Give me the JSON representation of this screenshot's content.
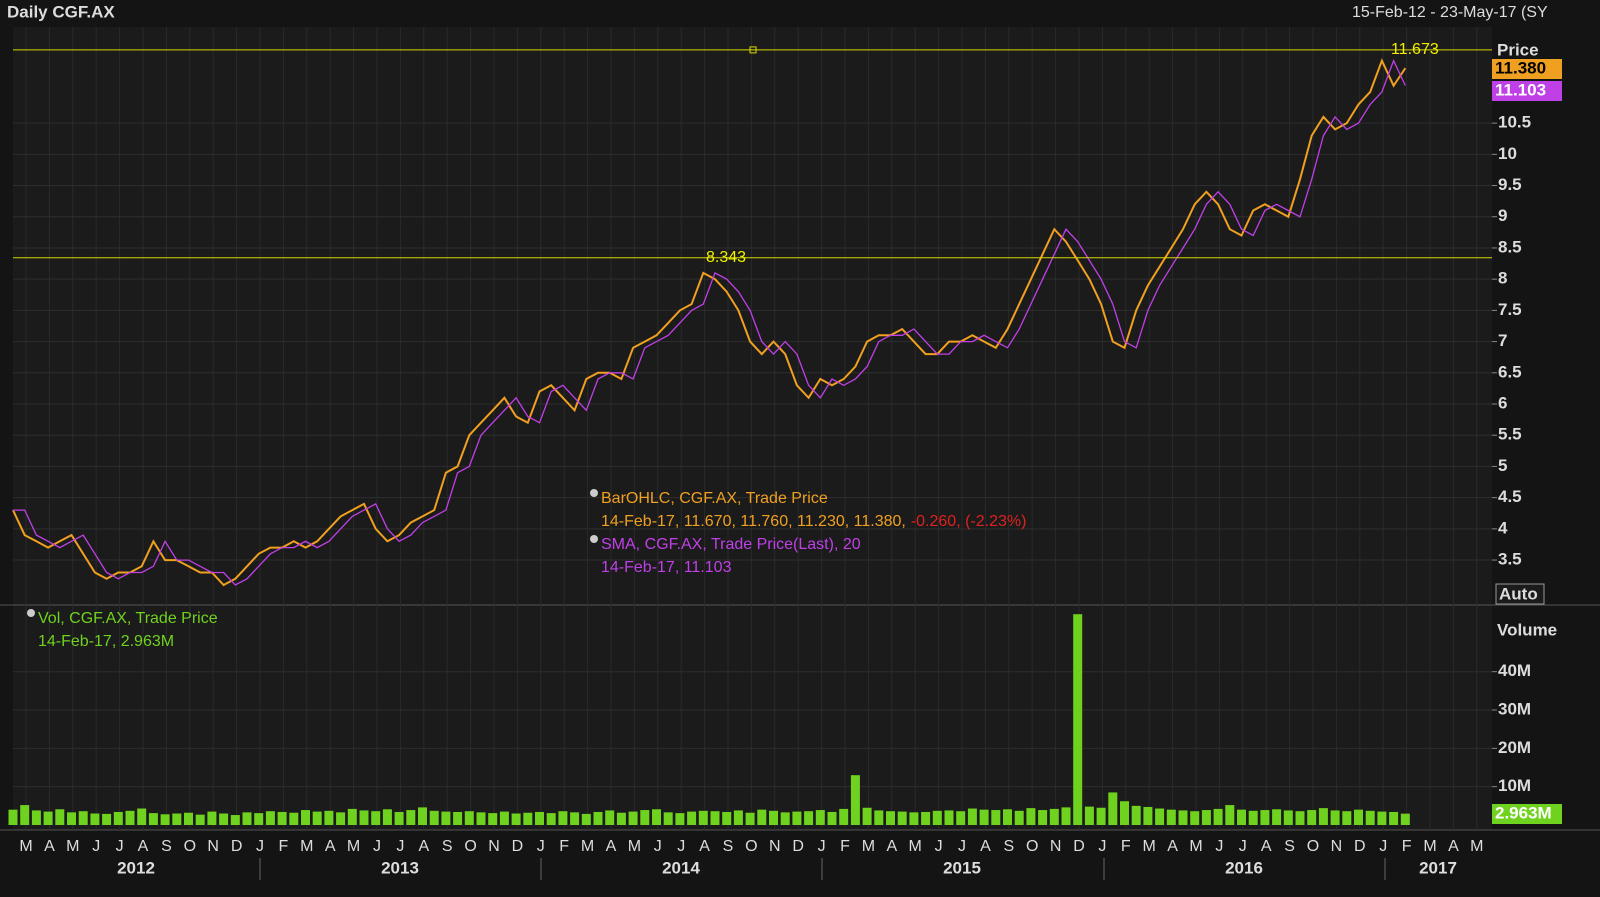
{
  "header": {
    "title": "Daily CGF.AX",
    "date_range": "15-Feb-12 - 23-May-17 (SY"
  },
  "x_axis": {
    "months": [
      "M",
      "A",
      "M",
      "J",
      "J",
      "A",
      "S",
      "O",
      "N",
      "D",
      "J",
      "F",
      "M",
      "A",
      "M",
      "J",
      "J",
      "A",
      "S",
      "O",
      "N",
      "D",
      "J",
      "F",
      "M",
      "A",
      "M",
      "J",
      "J",
      "A",
      "S",
      "O",
      "N",
      "D",
      "J",
      "F",
      "M",
      "A",
      "M",
      "J",
      "J",
      "A",
      "S",
      "O",
      "N",
      "D",
      "J",
      "F",
      "M",
      "A",
      "M",
      "J",
      "J",
      "A",
      "S",
      "O",
      "N",
      "D",
      "J",
      "F",
      "M",
      "A",
      "M"
    ],
    "years": [
      "2012",
      "2013",
      "2014",
      "2015",
      "2016",
      "2017"
    ]
  },
  "chart_data": [
    {
      "type": "line",
      "y_label": "Price",
      "scale_label": "Auto",
      "series": [
        {
          "name": "BarOHLC, CGF.AX, Trade Price",
          "color": "#f0a020",
          "values": [
            4.3,
            3.9,
            3.8,
            3.7,
            3.8,
            3.9,
            3.6,
            3.3,
            3.2,
            3.3,
            3.3,
            3.4,
            3.8,
            3.5,
            3.5,
            3.4,
            3.3,
            3.3,
            3.1,
            3.2,
            3.4,
            3.6,
            3.7,
            3.7,
            3.8,
            3.7,
            3.8,
            4.0,
            4.2,
            4.3,
            4.4,
            4.0,
            3.8,
            3.9,
            4.1,
            4.2,
            4.3,
            4.9,
            5.0,
            5.5,
            5.7,
            5.9,
            6.1,
            5.8,
            5.7,
            6.2,
            6.3,
            6.1,
            5.9,
            6.4,
            6.5,
            6.5,
            6.4,
            6.9,
            7.0,
            7.1,
            7.3,
            7.5,
            7.6,
            8.1,
            8.0,
            7.8,
            7.5,
            7.0,
            6.8,
            7.0,
            6.8,
            6.3,
            6.1,
            6.4,
            6.3,
            6.4,
            6.6,
            7.0,
            7.1,
            7.1,
            7.2,
            7.0,
            6.8,
            6.8,
            7.0,
            7.0,
            7.1,
            7.0,
            6.9,
            7.2,
            7.6,
            8.0,
            8.4,
            8.8,
            8.6,
            8.3,
            8.0,
            7.6,
            7.0,
            6.9,
            7.5,
            7.9,
            8.2,
            8.5,
            8.8,
            9.2,
            9.4,
            9.2,
            8.8,
            8.7,
            9.1,
            9.2,
            9.1,
            9.0,
            9.6,
            10.3,
            10.6,
            10.4,
            10.5,
            10.8,
            11.0,
            11.5,
            11.1,
            11.38
          ],
          "detail": "14-Feb-17, 11.670, 11.760, 11.230, 11.380,",
          "change": "-0.260, (-2.23%)",
          "last_label": "11.380"
        },
        {
          "name": "SMA, CGF.AX, Trade Price(Last),  20",
          "color": "#c040e8",
          "values": [
            4.3,
            4.3,
            3.9,
            3.8,
            3.7,
            3.8,
            3.9,
            3.6,
            3.3,
            3.2,
            3.3,
            3.3,
            3.4,
            3.8,
            3.5,
            3.5,
            3.4,
            3.3,
            3.3,
            3.1,
            3.2,
            3.4,
            3.6,
            3.7,
            3.7,
            3.8,
            3.7,
            3.8,
            4.0,
            4.2,
            4.3,
            4.4,
            4.0,
            3.8,
            3.9,
            4.1,
            4.2,
            4.3,
            4.9,
            5.0,
            5.5,
            5.7,
            5.9,
            6.1,
            5.8,
            5.7,
            6.2,
            6.3,
            6.1,
            5.9,
            6.4,
            6.5,
            6.5,
            6.4,
            6.9,
            7.0,
            7.1,
            7.3,
            7.5,
            7.6,
            8.1,
            8.0,
            7.8,
            7.5,
            7.0,
            6.8,
            7.0,
            6.8,
            6.3,
            6.1,
            6.4,
            6.3,
            6.4,
            6.6,
            7.0,
            7.1,
            7.1,
            7.2,
            7.0,
            6.8,
            6.8,
            7.0,
            7.0,
            7.1,
            7.0,
            6.9,
            7.2,
            7.6,
            8.0,
            8.4,
            8.8,
            8.6,
            8.3,
            8.0,
            7.6,
            7.0,
            6.9,
            7.5,
            7.9,
            8.2,
            8.5,
            8.8,
            9.2,
            9.4,
            9.2,
            8.8,
            8.7,
            9.1,
            9.2,
            9.1,
            9.0,
            9.6,
            10.3,
            10.6,
            10.4,
            10.5,
            10.8,
            11.0,
            11.5,
            11.103
          ],
          "detail": "14-Feb-17, 11.103",
          "last_label": "11.103"
        }
      ],
      "hlines": [
        11.673,
        8.343
      ],
      "ylim": [
        2.78,
        12.04
      ],
      "yticks": [
        3.5,
        4,
        4.5,
        5,
        5.5,
        6,
        6.5,
        7,
        7.5,
        8,
        8.5,
        9,
        9.5,
        10,
        10.5
      ]
    },
    {
      "type": "bar",
      "y_label": "Volume",
      "series": [
        {
          "name": "Vol, CGF.AX, Trade Price",
          "color": "#6fd21e",
          "values": [
            4000000,
            5200000,
            3800000,
            3500000,
            4100000,
            3300000,
            3600000,
            3000000,
            2900000,
            3400000,
            3700000,
            4300000,
            3100000,
            2800000,
            3000000,
            3200000,
            2700000,
            3500000,
            3000000,
            2600000,
            3300000,
            3100000,
            3600000,
            3400000,
            3200000,
            3900000,
            3500000,
            3700000,
            3300000,
            4200000,
            3800000,
            3600000,
            4100000,
            3400000,
            3900000,
            4600000,
            3700000,
            3500000,
            3400000,
            3600000,
            3300000,
            3100000,
            3500000,
            3000000,
            3200000,
            3400000,
            3100000,
            3600000,
            3300000,
            2900000,
            3400000,
            3800000,
            3200000,
            3500000,
            3900000,
            4100000,
            3300000,
            3100000,
            3500000,
            3700000,
            3600000,
            3400000,
            3800000,
            3200000,
            4000000,
            3700000,
            3300000,
            3500000,
            3600000,
            3900000,
            3400000,
            4200000,
            13000000,
            4500000,
            3800000,
            3600000,
            3500000,
            3300000,
            3400000,
            3700000,
            3800000,
            3600000,
            4300000,
            4000000,
            3900000,
            4100000,
            3700000,
            4400000,
            3900000,
            4200000,
            4600000,
            55000000,
            4800000,
            4500000,
            8500000,
            6200000,
            5000000,
            4700000,
            4300000,
            4000000,
            3800000,
            3600000,
            3900000,
            4200000,
            5200000,
            4000000,
            3700000,
            3900000,
            4100000,
            3800000,
            3600000,
            3900000,
            4400000,
            3800000,
            3600000,
            4000000,
            3700000,
            3500000,
            3400000,
            2963000
          ],
          "detail": "14-Feb-17, 2.963M",
          "last_label": "2.963M"
        }
      ],
      "ylim": [
        0,
        57400000
      ],
      "yticks": [
        {
          "value": 10000000,
          "label": "10M"
        },
        {
          "value": 20000000,
          "label": "20M"
        },
        {
          "value": 30000000,
          "label": "30M"
        },
        {
          "value": 40000000,
          "label": "40M"
        }
      ]
    }
  ]
}
